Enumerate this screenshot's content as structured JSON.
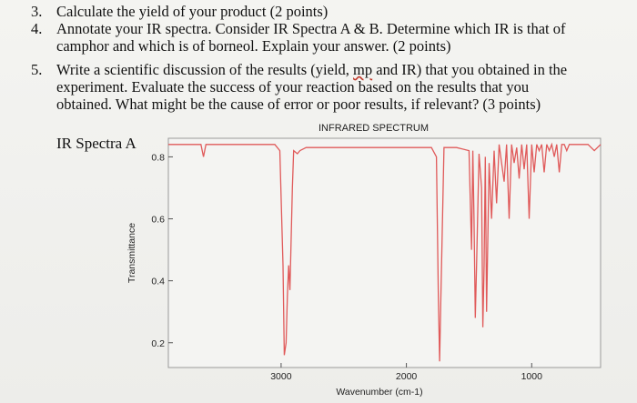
{
  "questions": [
    {
      "num": "3.",
      "lines": [
        "Calculate the yield of your product (2 points)"
      ]
    },
    {
      "num": "4.",
      "lines": [
        "Annotate your IR spectra. Consider IR Spectra A & B. Determine which IR is that of",
        "camphor and which is of borneol. Explain your answer. (2 points)"
      ]
    },
    {
      "num": "5.",
      "lines_pre": "Write a scientific discussion of the results (yield, ",
      "lines_mp": "mp",
      "lines_post": " and IR) that you obtained in the",
      "lines": [
        "experiment. Evaluate the success of your reaction based on the results that you",
        "obtained. What might be the cause of error or poor results, if relevant? (3 points)"
      ]
    }
  ],
  "spectra_label": "IR Spectra A",
  "chart_data": {
    "type": "line",
    "title": "INFRARED SPECTRUM",
    "xlabel": "Wavenumber (cm-1)",
    "ylabel": "Transmittance",
    "x_ticks": [
      "3000",
      "2000",
      "1000"
    ],
    "y_ticks": [
      "0.8",
      "0.6",
      "0.4",
      "0.2"
    ],
    "xlim": [
      3900,
      450
    ],
    "ylim": [
      0.12,
      0.86
    ],
    "series_color": "#e05a5a",
    "series": [
      {
        "x": [
          3900,
          3700,
          3640,
          3620,
          3600,
          3500,
          3200,
          3100,
          3050,
          3010,
          2985,
          2975,
          2960,
          2950,
          2940,
          2930,
          2910,
          2900,
          2870,
          2850,
          2800,
          2700,
          2600,
          2500,
          2400,
          2300,
          2200,
          2100,
          2000,
          1900,
          1860,
          1800,
          1760,
          1745,
          1735,
          1725,
          1700,
          1600,
          1500,
          1480,
          1470,
          1460,
          1450,
          1440,
          1420,
          1400,
          1390,
          1380,
          1370,
          1360,
          1340,
          1320,
          1300,
          1280,
          1260,
          1240,
          1220,
          1200,
          1180,
          1160,
          1140,
          1120,
          1100,
          1080,
          1060,
          1040,
          1020,
          1000,
          980,
          960,
          940,
          920,
          900,
          880,
          860,
          840,
          820,
          800,
          780,
          760,
          740,
          720,
          700,
          650,
          600,
          550,
          500,
          450
        ],
        "y": [
          0.84,
          0.84,
          0.84,
          0.8,
          0.84,
          0.84,
          0.84,
          0.84,
          0.84,
          0.82,
          0.45,
          0.16,
          0.2,
          0.35,
          0.45,
          0.37,
          0.7,
          0.82,
          0.81,
          0.82,
          0.83,
          0.83,
          0.83,
          0.83,
          0.83,
          0.83,
          0.83,
          0.83,
          0.83,
          0.83,
          0.83,
          0.83,
          0.8,
          0.35,
          0.14,
          0.35,
          0.83,
          0.83,
          0.82,
          0.5,
          0.82,
          0.6,
          0.28,
          0.45,
          0.81,
          0.7,
          0.25,
          0.45,
          0.8,
          0.3,
          0.78,
          0.6,
          0.82,
          0.65,
          0.84,
          0.78,
          0.72,
          0.84,
          0.6,
          0.84,
          0.78,
          0.83,
          0.73,
          0.84,
          0.76,
          0.84,
          0.6,
          0.84,
          0.75,
          0.84,
          0.82,
          0.84,
          0.75,
          0.84,
          0.82,
          0.84,
          0.8,
          0.84,
          0.75,
          0.84,
          0.84,
          0.82,
          0.84,
          0.84,
          0.84,
          0.84,
          0.82,
          0.84
        ]
      }
    ],
    "grid": false
  }
}
